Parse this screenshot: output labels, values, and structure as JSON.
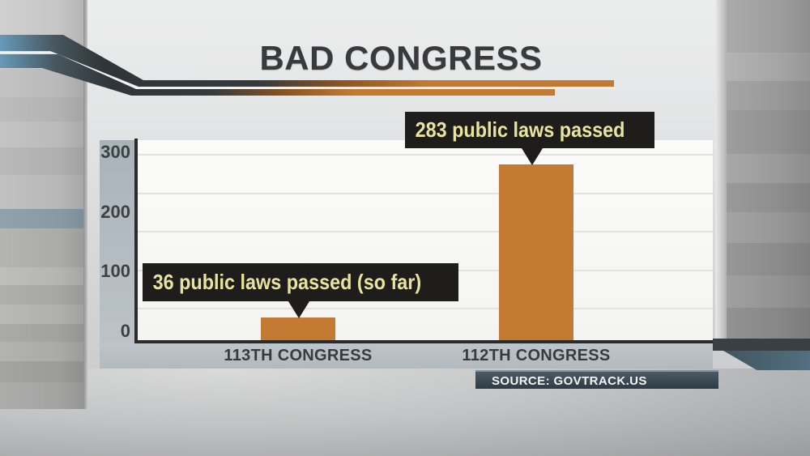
{
  "title": "BAD CONGRESS",
  "chart_data": {
    "type": "bar",
    "title": "BAD CONGRESS",
    "categories": [
      "113TH CONGRESS",
      "112TH CONGRESS"
    ],
    "values": [
      36,
      283
    ],
    "yticks": [
      300,
      200,
      100,
      0
    ],
    "ylim": [
      0,
      322
    ],
    "xlabel": "",
    "ylabel": "",
    "grid": "horizontal",
    "legend": "none",
    "bar_color": "#c47a33",
    "annotations": [
      {
        "target": "113TH CONGRESS",
        "value": 36,
        "text": "36 public laws passed (so far)"
      },
      {
        "target": "112TH CONGRESS",
        "value": 283,
        "text": "283 public laws passed"
      }
    ],
    "source": "SOURCE: GOVTRACK.US"
  },
  "callouts": {
    "c113": {
      "text": "36 public laws passed (so far)"
    },
    "c112": {
      "text": "283 public laws passed"
    }
  },
  "source_badge": {
    "label": "SOURCE: GOVTRACK.US"
  },
  "colors": {
    "bar_orange": "#c47a33",
    "callout_bg": "#1f1d1b",
    "callout_text": "#e9e49d",
    "title_text": "#3a3a3c",
    "axis_line": "#2b2b2b",
    "axis_strip": "#b2bbc1",
    "plot_bg": "#f8f8f6",
    "source_bg": "#3d4a54",
    "source_text": "#f2f4f5",
    "swoosh_blue": "#6699b8"
  }
}
